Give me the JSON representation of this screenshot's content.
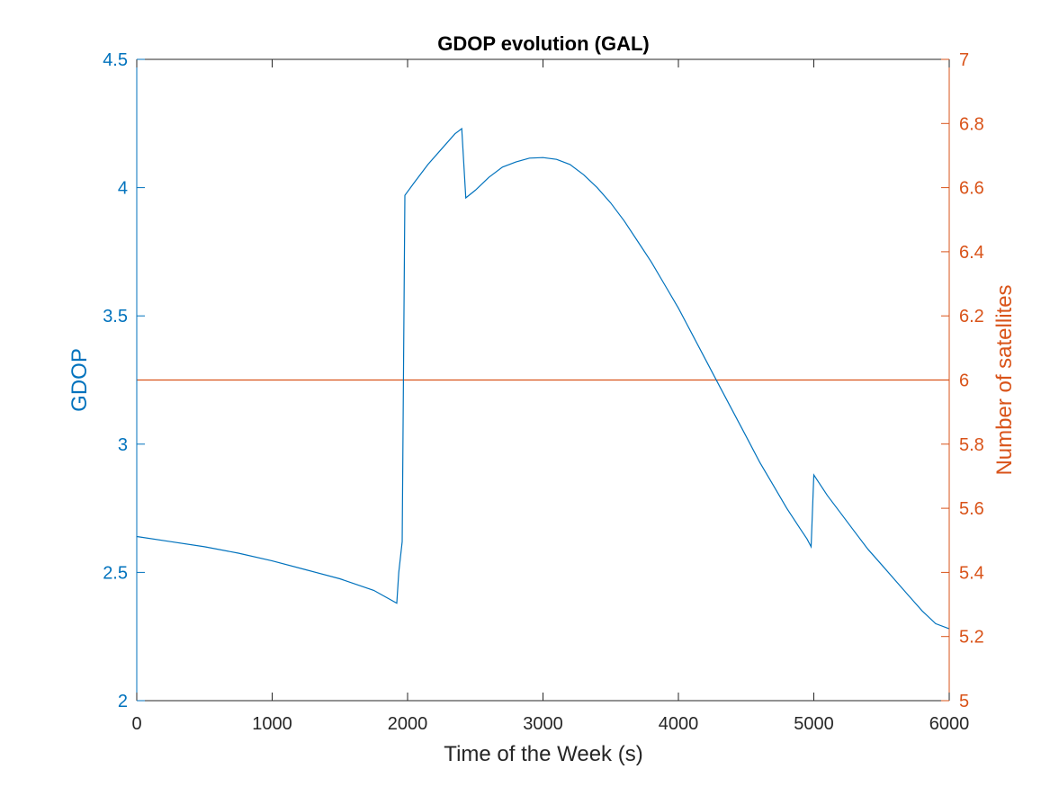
{
  "chart_data": {
    "type": "line",
    "title": "GDOP evolution (GAL)",
    "xlabel": "Time of the Week (s)",
    "ylabel_left": "GDOP",
    "ylabel_right": "Number of satellites",
    "xlim": [
      0,
      6000
    ],
    "ylim_left": [
      2,
      4.5
    ],
    "ylim_right": [
      5,
      7
    ],
    "xticks": [
      0,
      1000,
      2000,
      3000,
      4000,
      5000,
      6000
    ],
    "yticks_left": [
      "2",
      "2.5",
      "3",
      "3.5",
      "4",
      "4.5"
    ],
    "yticks_right": [
      "5",
      "5.2",
      "5.4",
      "5.6",
      "5.8",
      "6",
      "6.2",
      "6.4",
      "6.6",
      "6.8",
      "7"
    ],
    "colors": {
      "left": "#0072BD",
      "right": "#D95319",
      "axis": "#262626"
    },
    "grid": false,
    "series": [
      {
        "name": "GDOP",
        "axis": "left",
        "x": [
          0,
          250,
          500,
          750,
          1000,
          1250,
          1500,
          1750,
          1920,
          1935,
          1960,
          1980,
          2050,
          2150,
          2250,
          2350,
          2400,
          2430,
          2500,
          2600,
          2700,
          2800,
          2900,
          3000,
          3100,
          3200,
          3300,
          3400,
          3500,
          3600,
          3700,
          3800,
          3900,
          4000,
          4100,
          4200,
          4300,
          4400,
          4500,
          4600,
          4700,
          4800,
          4900,
          4950,
          4980,
          5000,
          5100,
          5200,
          5300,
          5400,
          5500,
          5600,
          5700,
          5800,
          5900,
          6000
        ],
        "y": [
          2.64,
          2.62,
          2.6,
          2.575,
          2.545,
          2.51,
          2.475,
          2.43,
          2.38,
          2.5,
          2.62,
          3.97,
          4.02,
          4.09,
          4.15,
          4.21,
          4.23,
          3.96,
          3.99,
          4.04,
          4.08,
          4.1,
          4.115,
          4.117,
          4.11,
          4.09,
          4.05,
          4.0,
          3.94,
          3.87,
          3.79,
          3.71,
          3.62,
          3.53,
          3.43,
          3.33,
          3.23,
          3.13,
          3.03,
          2.93,
          2.84,
          2.75,
          2.67,
          2.63,
          2.6,
          2.88,
          2.8,
          2.73,
          2.66,
          2.59,
          2.53,
          2.47,
          2.41,
          2.35,
          2.3,
          2.28
        ]
      },
      {
        "name": "Number of satellites",
        "axis": "right",
        "x": [
          0,
          6000
        ],
        "y": [
          6,
          6
        ]
      }
    ]
  }
}
